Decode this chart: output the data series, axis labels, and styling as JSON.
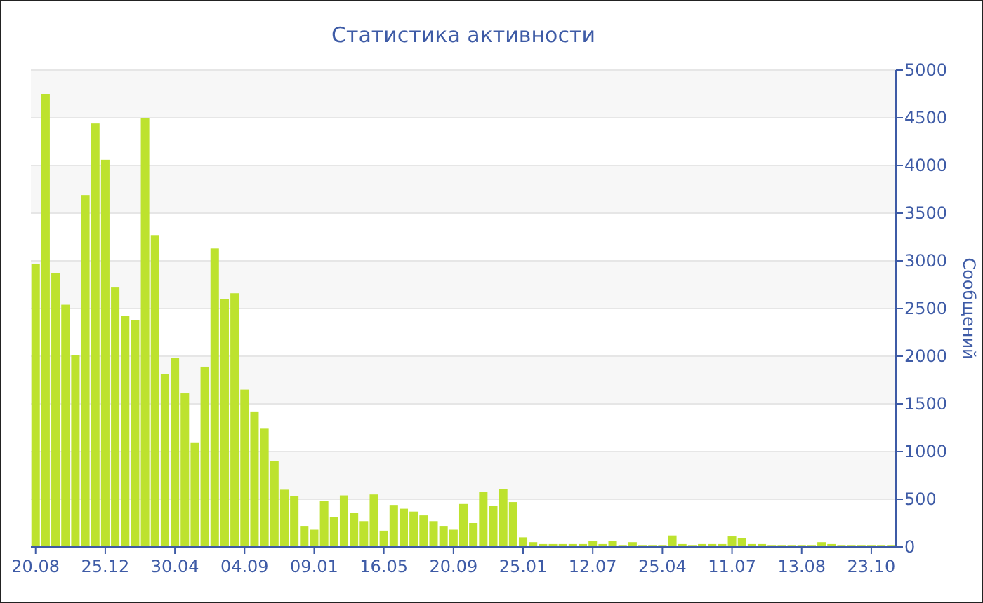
{
  "chart_data": {
    "type": "bar",
    "title": "Статистика активности",
    "ylabel": "Сообщений",
    "categories": [
      "20.08",
      null,
      null,
      null,
      null,
      null,
      null,
      "25.12",
      null,
      null,
      null,
      null,
      null,
      null,
      "30.04",
      null,
      null,
      null,
      null,
      null,
      null,
      "04.09",
      null,
      null,
      null,
      null,
      null,
      null,
      "09.01",
      null,
      null,
      null,
      null,
      null,
      null,
      "16.05",
      null,
      null,
      null,
      null,
      null,
      null,
      "20.09",
      null,
      null,
      null,
      null,
      null,
      null,
      "25.01",
      null,
      null,
      null,
      null,
      null,
      null,
      "12.07",
      null,
      null,
      null,
      null,
      null,
      null,
      "25.04",
      null,
      null,
      null,
      null,
      null,
      null,
      "11.07",
      null,
      null,
      null,
      null,
      null,
      null,
      "13.08",
      null,
      null,
      null,
      null,
      null,
      null,
      "23.10",
      null,
      null
    ],
    "values": [
      2970,
      4750,
      2870,
      2540,
      2010,
      3690,
      4440,
      4060,
      2720,
      2420,
      2380,
      4500,
      3270,
      1810,
      1980,
      1610,
      1090,
      1890,
      3130,
      2600,
      2660,
      1650,
      1420,
      1240,
      900,
      600,
      530,
      220,
      180,
      480,
      310,
      540,
      360,
      270,
      550,
      170,
      440,
      400,
      370,
      330,
      270,
      220,
      180,
      450,
      250,
      580,
      430,
      610,
      470,
      100,
      50,
      30,
      30,
      30,
      30,
      30,
      60,
      30,
      60,
      20,
      50,
      20,
      20,
      20,
      120,
      30,
      20,
      30,
      30,
      30,
      110,
      90,
      30,
      30,
      20,
      20,
      20,
      20,
      20,
      50,
      30,
      20,
      20,
      20,
      20,
      20,
      20
    ],
    "color": "#bde22e",
    "ylim": [
      0,
      5000
    ],
    "yticks": [
      0,
      500,
      1000,
      1500,
      2000,
      2500,
      3000,
      3500,
      4000,
      4500,
      5000
    ],
    "grid": "y"
  }
}
